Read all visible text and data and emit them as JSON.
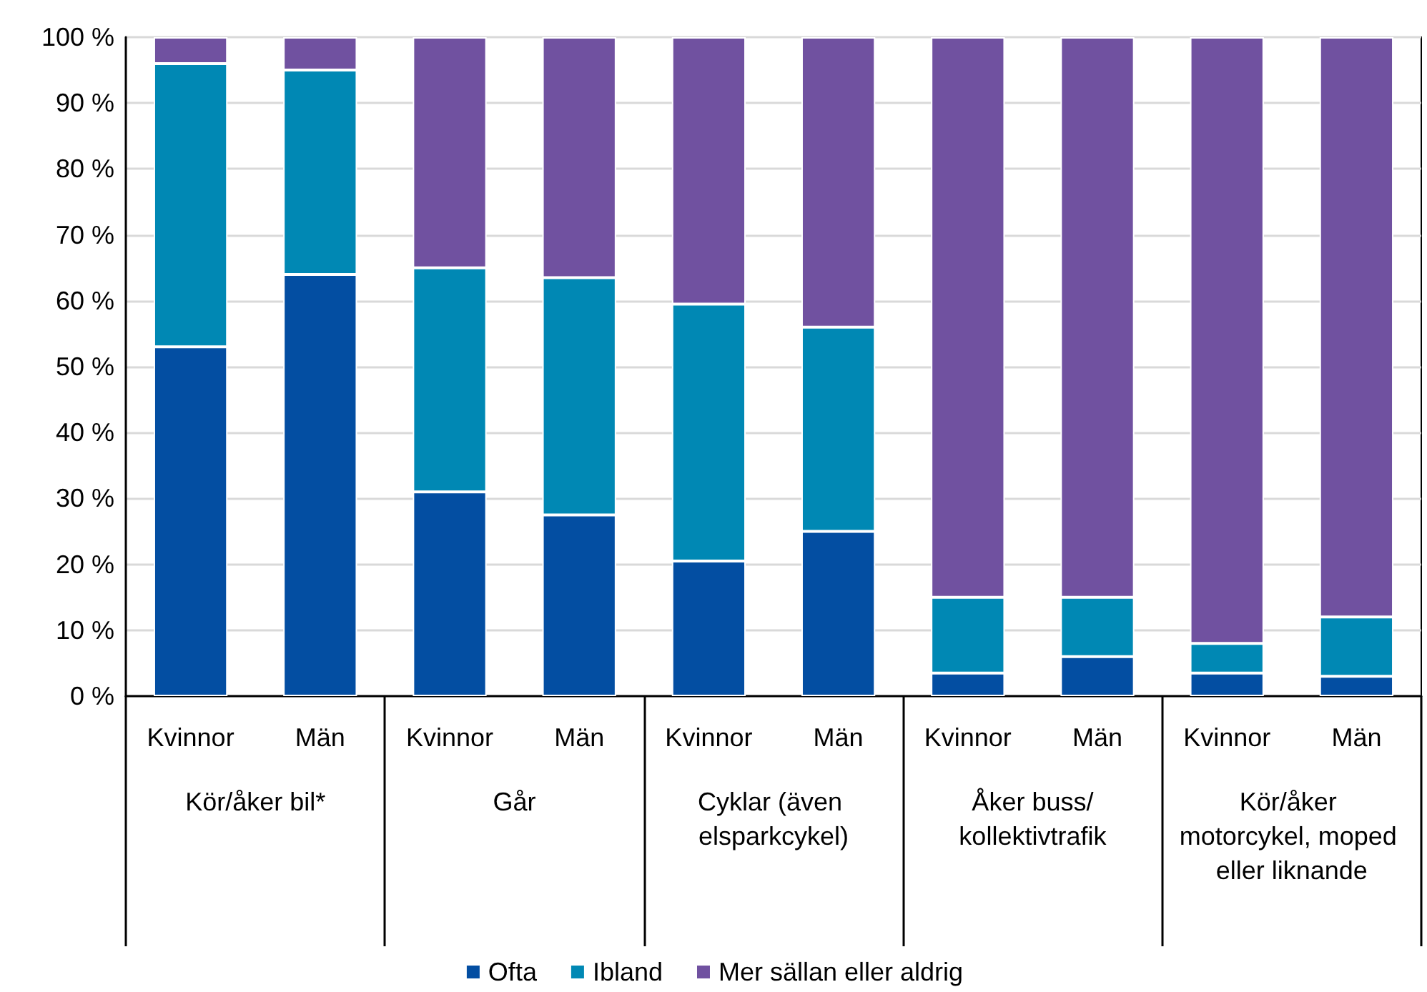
{
  "chart_data": {
    "type": "bar",
    "stacked": true,
    "categories": [
      "Kvinnor",
      "Män",
      "Kvinnor",
      "Män",
      "Kvinnor",
      "Män",
      "Kvinnor",
      "Män",
      "Kvinnor",
      "Män"
    ],
    "annotations": [
      "Kör/åker bil*",
      "Går",
      "Cyklar (även elsparkcykel)",
      "Åker buss/kollektivtrafik",
      "Kör/åker motorcykel, moped eller liknande"
    ],
    "series": [
      {
        "name": "Ofta",
        "color": "#034ea2",
        "values": [
          53,
          64,
          31,
          27.5,
          20.5,
          25,
          3.5,
          6,
          3.5,
          3
        ]
      },
      {
        "name": "Ibland",
        "color": "#0088b4",
        "values": [
          43,
          31,
          34,
          36,
          39,
          31,
          11.5,
          9,
          4.5,
          9
        ]
      },
      {
        "name": "Mer sällan eller aldrig",
        "color": "#7051a0",
        "values": [
          4,
          5,
          35,
          36.5,
          40.5,
          44,
          85,
          85,
          92,
          88
        ]
      }
    ],
    "ylim": [
      0,
      100
    ],
    "yticks": [
      {
        "value": 0,
        "label": "0 %"
      },
      {
        "value": 10,
        "label": "10 %"
      },
      {
        "value": 20,
        "label": "20 %"
      },
      {
        "value": 30,
        "label": "30 %"
      },
      {
        "value": 40,
        "label": "40 %"
      },
      {
        "value": 50,
        "label": "50 %"
      },
      {
        "value": 60,
        "label": "60 %"
      },
      {
        "value": 70,
        "label": "70 %"
      },
      {
        "value": 80,
        "label": "80 %"
      },
      {
        "value": 90,
        "label": "90 %"
      },
      {
        "value": 100,
        "label": "100 %"
      }
    ],
    "grid": "y",
    "legend": "bottom"
  }
}
